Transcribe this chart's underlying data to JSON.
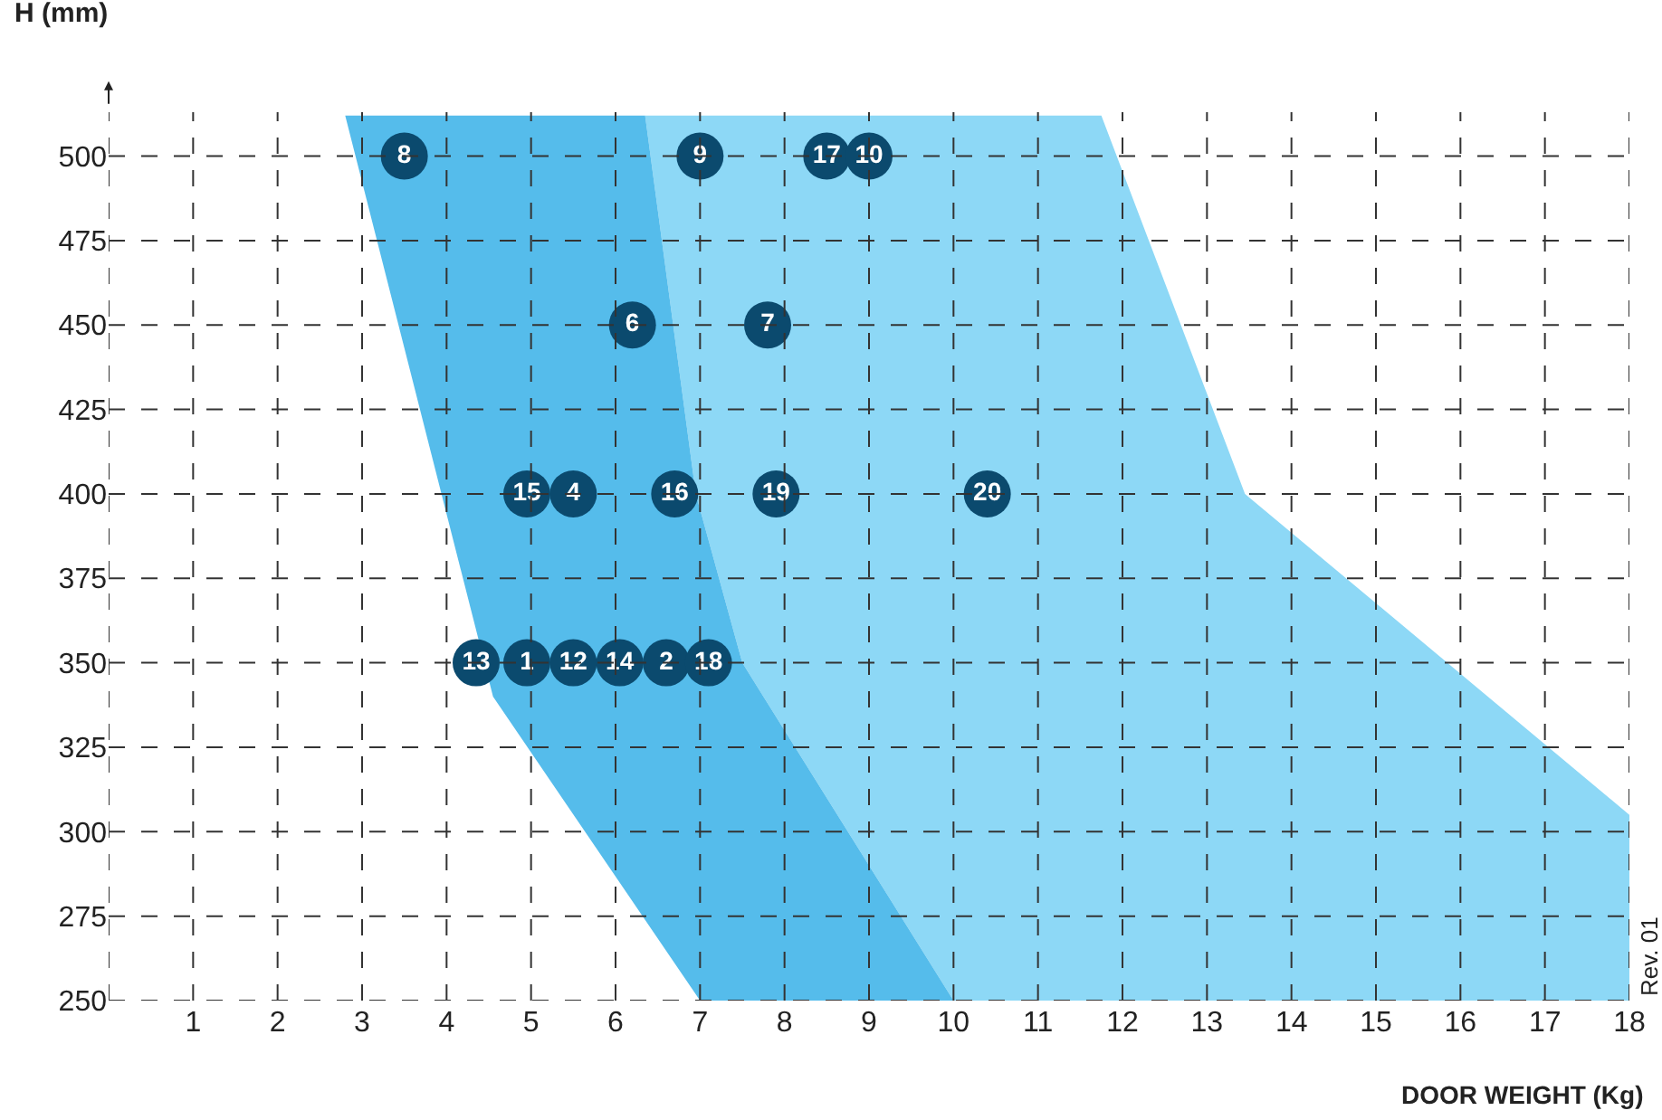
{
  "chart_data": {
    "type": "scatter",
    "xlabel": "DOOR WEIGHT (Kg)",
    "ylabel": "H (mm)",
    "xlim": [
      0,
      18
    ],
    "xticks": [
      {
        "value": 0,
        "label": null
      },
      1,
      2,
      3,
      4,
      5,
      6,
      7,
      8,
      9,
      10,
      11,
      12,
      13,
      14,
      15,
      16,
      17,
      18
    ],
    "ylim": [
      250,
      513
    ],
    "yticks": [
      250,
      275,
      300,
      325,
      350,
      375,
      400,
      425,
      450,
      475,
      500
    ],
    "grid": true,
    "series": [
      {
        "type": "area",
        "color": "#8dd8f6",
        "x": [
          6.35,
          11.75,
          13.45,
          18,
          18,
          10,
          7.5,
          6.95,
          6.35
        ],
        "values": [
          512,
          512,
          400,
          305,
          250,
          250,
          350,
          400,
          512
        ]
      },
      {
        "type": "area",
        "color": "#55bceb",
        "x": [
          2.8,
          6.35,
          6.95,
          7.5,
          10,
          7,
          4.55,
          2.8
        ],
        "values": [
          512,
          512,
          400,
          350,
          250,
          250,
          340,
          512
        ]
      },
      {
        "color": "#0b4a6e",
        "marker": "circle",
        "x": [
          3.5,
          7,
          8.5,
          9,
          6.2,
          7.8,
          4.95,
          5.5,
          6.7,
          7.9,
          10.4,
          4.35,
          4.95,
          5.5,
          6.05,
          6.6,
          7.1
        ],
        "values": [
          500,
          500,
          500,
          500,
          450,
          450,
          400,
          400,
          400,
          400,
          400,
          350,
          350,
          350,
          350,
          350,
          350
        ]
      }
    ],
    "annotations": [
      "Rev. 01",
      {
        "text": "8",
        "x": 3.5,
        "y": 500
      },
      {
        "text": "9",
        "x": 7,
        "y": 500
      },
      {
        "text": "17",
        "x": 8.5,
        "y": 500
      },
      {
        "text": "10",
        "x": 9,
        "y": 500
      },
      {
        "text": "6",
        "x": 6.2,
        "y": 450
      },
      {
        "text": "7",
        "x": 7.8,
        "y": 450
      },
      {
        "text": "15",
        "x": 4.95,
        "y": 400
      },
      {
        "text": "4",
        "x": 5.5,
        "y": 400
      },
      {
        "text": "16",
        "x": 6.7,
        "y": 400
      },
      {
        "text": "19",
        "x": 7.9,
        "y": 400
      },
      {
        "text": "20",
        "x": 10.4,
        "y": 400
      },
      {
        "text": "13",
        "x": 4.35,
        "y": 350
      },
      {
        "text": "1",
        "x": 4.95,
        "y": 350
      },
      {
        "text": "12",
        "x": 5.5,
        "y": 350
      },
      {
        "text": "14",
        "x": 6.05,
        "y": 350
      },
      {
        "text": "2",
        "x": 6.6,
        "y": 350
      },
      {
        "text": "18",
        "x": 7.1,
        "y": 350
      }
    ]
  }
}
